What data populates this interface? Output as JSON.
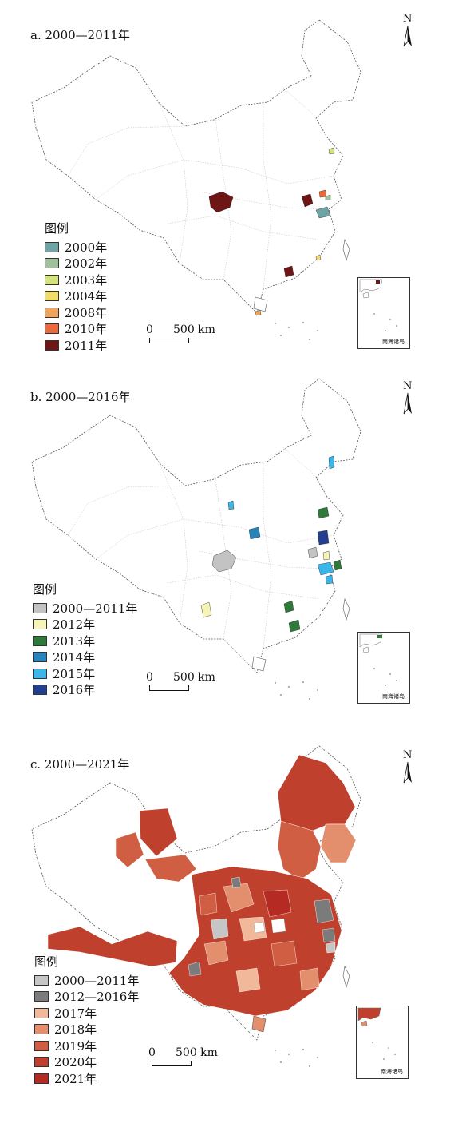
{
  "panels": [
    {
      "title": "a. 2000—2011年",
      "legend_title": "图例",
      "legend": [
        {
          "label": "2000年",
          "color": "#6fa4a6"
        },
        {
          "label": "2002年",
          "color": "#9fc29a"
        },
        {
          "label": "2003年",
          "color": "#d6e27e"
        },
        {
          "label": "2004年",
          "color": "#f2dc6a"
        },
        {
          "label": "2008年",
          "color": "#f2a55a"
        },
        {
          "label": "2010年",
          "color": "#ec6a3a"
        },
        {
          "label": "2011年",
          "color": "#6e1616"
        }
      ]
    },
    {
      "title": "b. 2000—2016年",
      "legend_title": "图例",
      "legend": [
        {
          "label": "2000—2011年",
          "color": "#c3c3c3"
        },
        {
          "label": "2012年",
          "color": "#f7f4b8"
        },
        {
          "label": "2013年",
          "color": "#2f7a3a"
        },
        {
          "label": "2014年",
          "color": "#2a84b8"
        },
        {
          "label": "2015年",
          "color": "#3ab6e8"
        },
        {
          "label": "2016年",
          "color": "#22408f"
        }
      ]
    },
    {
      "title": "c. 2000—2021年",
      "legend_title": "图例",
      "legend": [
        {
          "label": "2000—2011年",
          "color": "#c6c6c6"
        },
        {
          "label": "2012—2016年",
          "color": "#7b7b7b"
        },
        {
          "label": "2017年",
          "color": "#f1b89a"
        },
        {
          "label": "2018年",
          "color": "#e38f6d"
        },
        {
          "label": "2019年",
          "color": "#cf5e43"
        },
        {
          "label": "2020年",
          "color": "#c0402e"
        },
        {
          "label": "2021年",
          "color": "#b52a22"
        }
      ]
    }
  ],
  "scale": {
    "zero": "0",
    "distance": "500 km"
  },
  "north_label": "N",
  "inset_label": "南海诸岛"
}
